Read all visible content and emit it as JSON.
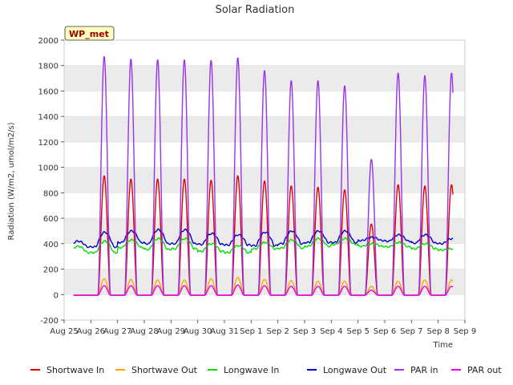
{
  "chart_data": {
    "type": "line",
    "title": "Solar Radiation",
    "xlabel": "Time",
    "ylabel": "Radiation (W/m2, umol/m2/s)",
    "ylim": [
      -200,
      2000
    ],
    "yticks": [
      -200,
      0,
      200,
      400,
      600,
      800,
      1000,
      1200,
      1400,
      1600,
      1800,
      2000
    ],
    "xlim_days": [
      0,
      15
    ],
    "xtick_labels": [
      "Aug 25",
      "Aug 26",
      "Aug 27",
      "Aug 28",
      "Aug 29",
      "Aug 30",
      "Aug 31",
      "Sep 1",
      "Sep 2",
      "Sep 3",
      "Sep 4",
      "Sep 5",
      "Sep 6",
      "Sep 7",
      "Sep 8",
      "Sep 9"
    ],
    "grid": "horizontal bands",
    "annotation": "WP_met",
    "legend_position": "bottom",
    "daily_series": {
      "days": [
        "Aug 25",
        "Aug 26",
        "Aug 27",
        "Aug 28",
        "Aug 29",
        "Aug 30",
        "Aug 31",
        "Sep 1",
        "Sep 2",
        "Sep 3",
        "Sep 4",
        "Sep 5",
        "Sep 6",
        "Sep 7",
        "Sep 8"
      ],
      "series": [
        {
          "name": "Shortwave In",
          "color": "#dd0000",
          "kind": "peak",
          "peaks": [
            null,
            940,
            915,
            915,
            915,
            905,
            940,
            900,
            860,
            850,
            830,
            560,
            870,
            860,
            870
          ]
        },
        {
          "name": "Shortwave Out",
          "color": "#ffa500",
          "kind": "peak",
          "peaks": [
            null,
            130,
            125,
            120,
            120,
            130,
            140,
            125,
            115,
            110,
            110,
            70,
            110,
            120,
            120
          ]
        },
        {
          "name": "Longwave In",
          "color": "#00dd00",
          "kind": "level",
          "night": [
            330,
            330,
            370,
            355,
            360,
            340,
            330,
            360,
            365,
            380,
            395,
            380,
            375,
            360,
            350
          ],
          "day": [
            380,
            420,
            430,
            440,
            440,
            400,
            385,
            410,
            430,
            440,
            440,
            400,
            410,
            400,
            360
          ]
        },
        {
          "name": "Longwave Out",
          "color": "#0000cc",
          "kind": "level",
          "night": [
            375,
            375,
            410,
            400,
            400,
            395,
            390,
            385,
            400,
            410,
            410,
            425,
            420,
            405,
            400
          ],
          "day": [
            420,
            490,
            500,
            510,
            510,
            480,
            470,
            490,
            500,
            500,
            500,
            450,
            470,
            470,
            440
          ]
        },
        {
          "name": "PAR in",
          "color": "#9933ee",
          "kind": "peak",
          "peaks": [
            null,
            1880,
            1860,
            1855,
            1855,
            1850,
            1870,
            1770,
            1690,
            1690,
            1650,
            1070,
            1750,
            1730,
            1750
          ]
        },
        {
          "name": "PAR out",
          "color": "#ee00ee",
          "kind": "peak",
          "peaks": [
            null,
            75,
            75,
            75,
            75,
            75,
            80,
            75,
            70,
            70,
            70,
            40,
            70,
            70,
            70
          ]
        }
      ]
    }
  }
}
